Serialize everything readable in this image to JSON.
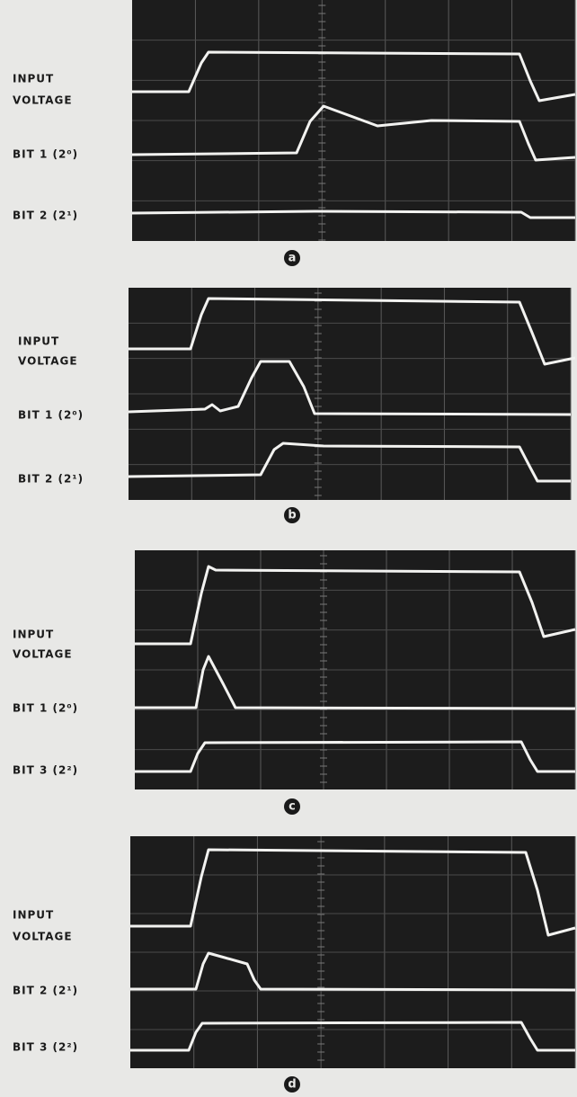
{
  "panels": [
    {
      "letter": "a",
      "labels": [
        "INPUT",
        "VOLTAGE",
        "BIT 1 (2⁰)",
        "BIT 2 (2¹)"
      ]
    },
    {
      "letter": "b",
      "labels": [
        "INPUT",
        "VOLTAGE",
        "BIT 1 (2⁰)",
        "BIT 2 (2¹)"
      ]
    },
    {
      "letter": "c",
      "labels": [
        "INPUT",
        "VOLTAGE",
        "BIT 1 (2⁰)",
        "BIT 3 (2²)"
      ]
    },
    {
      "letter": "d",
      "labels": [
        "INPUT",
        "VOLTAGE",
        "BIT 2 (2¹)",
        "BIT 3 (2²)"
      ]
    }
  ]
}
